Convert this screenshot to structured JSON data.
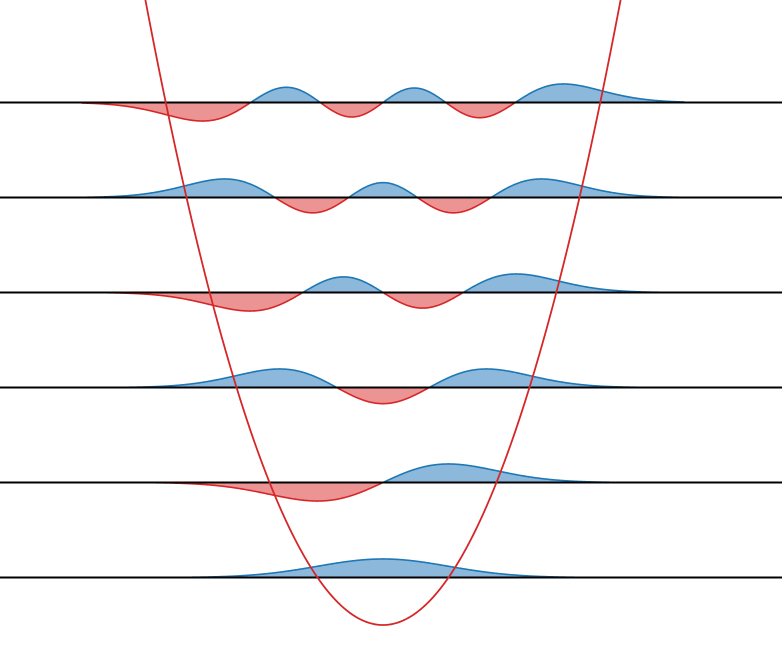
{
  "chart_data": {
    "type": "area",
    "title": "",
    "xlabel": "",
    "ylabel": "",
    "grid": false,
    "legend": "none",
    "xlim": [
      -4.6,
      4.6
    ],
    "ylim": [
      0,
      6.8
    ],
    "potential": {
      "formula": "y = x^2 / 2",
      "color": "#d62728"
    },
    "colors": {
      "positive_fill": "#8cb8dc",
      "positive_stroke": "#1f77b4",
      "negative_fill": "#ec9494",
      "negative_stroke": "#d62728",
      "baseline": "#000000"
    },
    "series": [
      {
        "n": 0,
        "energy": 0.5,
        "amplitude": 0.5
      },
      {
        "n": 1,
        "energy": 1.5,
        "amplitude": 0.5
      },
      {
        "n": 2,
        "energy": 2.5,
        "amplitude": 0.5
      },
      {
        "n": 3,
        "energy": 3.5,
        "amplitude": 0.5
      },
      {
        "n": 4,
        "energy": 4.5,
        "amplitude": 0.5
      },
      {
        "n": 5,
        "energy": 5.5,
        "amplitude": 0.5
      }
    ]
  }
}
